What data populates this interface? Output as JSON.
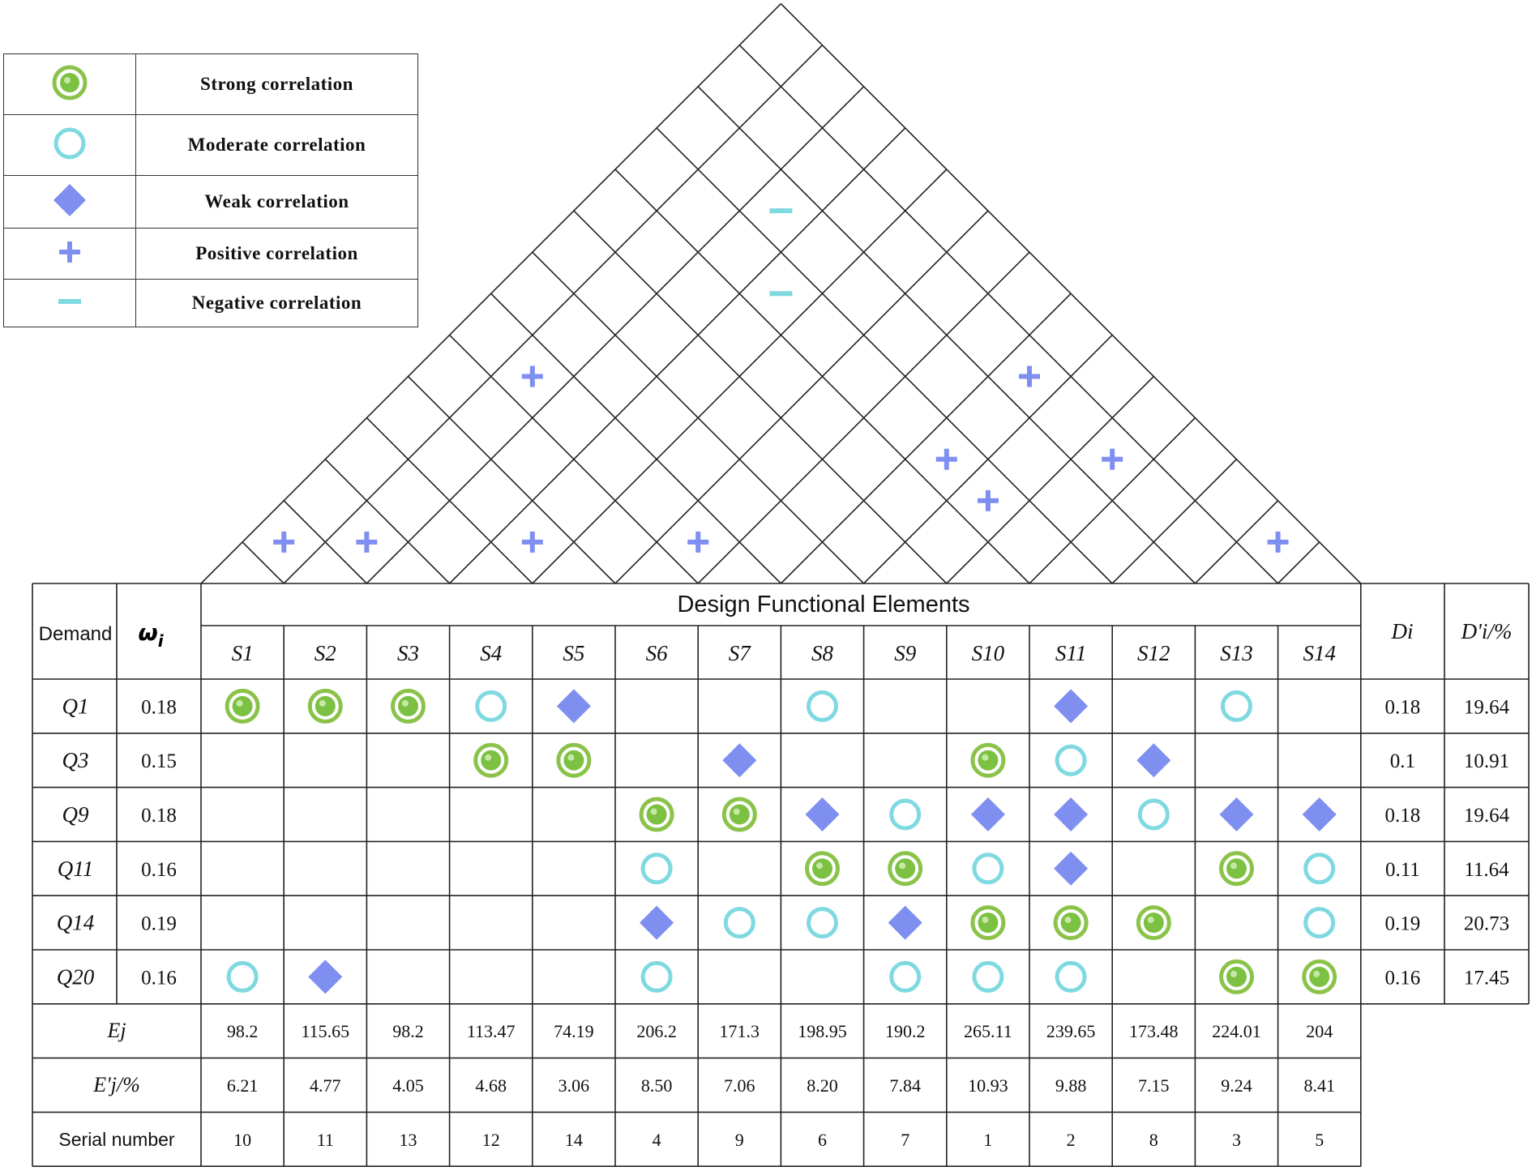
{
  "colors": {
    "strong": "#7cc142",
    "strong_ring": "#8bc34a",
    "moderate": "#7fd9e0",
    "weak": "#7f8ff0",
    "positive": "#7f8ff0",
    "negative": "#7fd9e0",
    "line": "#222222"
  },
  "legend": [
    {
      "symbol": "strong-icon",
      "label": "Strong correlation"
    },
    {
      "symbol": "moderate-icon",
      "label": "Moderate correlation"
    },
    {
      "symbol": "weak-icon",
      "label": "Weak correlation"
    },
    {
      "symbol": "plus-icon",
      "label": "Positive correlation"
    },
    {
      "symbol": "minus-icon",
      "label": "Negative correlation"
    }
  ],
  "roof": {
    "marks": [
      {
        "i": 1,
        "j": 2,
        "type": "plus"
      },
      {
        "i": 2,
        "j": 3,
        "type": "plus"
      },
      {
        "i": 4,
        "j": 5,
        "type": "plus"
      },
      {
        "i": 2,
        "j": 7,
        "type": "plus"
      },
      {
        "i": 4,
        "j": 11,
        "type": "minus"
      },
      {
        "i": 3,
        "j": 12,
        "type": "minus"
      },
      {
        "i": 6,
        "j": 7,
        "type": "plus"
      },
      {
        "i": 8,
        "j": 13,
        "type": "plus"
      },
      {
        "i": 8,
        "j": 11,
        "type": "plus"
      },
      {
        "i": 9,
        "j": 11,
        "type": "plus"
      },
      {
        "i": 10,
        "j": 13,
        "type": "plus"
      },
      {
        "i": 13,
        "j": 14,
        "type": "plus"
      }
    ]
  },
  "header": {
    "demand": "Demand",
    "omega": "ω",
    "omega_sub": "i",
    "group_title": "Design Functional Elements",
    "di": "Di",
    "dpi": "D'i/%"
  },
  "columns": [
    "S1",
    "S2",
    "S3",
    "S4",
    "S5",
    "S6",
    "S7",
    "S8",
    "S9",
    "S10",
    "S11",
    "S12",
    "S13",
    "S14"
  ],
  "rows": [
    {
      "demand": "Q1",
      "w": "0.18",
      "cells": [
        "S",
        "S",
        "S",
        "M",
        "W",
        "",
        "",
        "M",
        "",
        "",
        "W",
        "",
        "M",
        ""
      ],
      "di": "0.18",
      "dpi": "19.64"
    },
    {
      "demand": "Q3",
      "w": "0.15",
      "cells": [
        "",
        "",
        "",
        "S",
        "S",
        "",
        "W",
        "",
        "",
        "S",
        "M",
        "W",
        "",
        ""
      ],
      "di": "0.1",
      "dpi": "10.91"
    },
    {
      "demand": "Q9",
      "w": "0.18",
      "cells": [
        "",
        "",
        "",
        "",
        "",
        "S",
        "S",
        "W",
        "M",
        "W",
        "W",
        "M",
        "W",
        "W"
      ],
      "di": "0.18",
      "dpi": "19.64"
    },
    {
      "demand": "Q11",
      "w": "0.16",
      "cells": [
        "",
        "",
        "",
        "",
        "",
        "M",
        "",
        "S",
        "S",
        "M",
        "W",
        "",
        "S",
        "M"
      ],
      "di": "0.11",
      "dpi": "11.64"
    },
    {
      "demand": "Q14",
      "w": "0.19",
      "cells": [
        "",
        "",
        "",
        "",
        "",
        "W",
        "M",
        "M",
        "W",
        "S",
        "S",
        "S",
        "",
        "M"
      ],
      "di": "0.19",
      "dpi": "20.73"
    },
    {
      "demand": "Q20",
      "w": "0.16",
      "cells": [
        "M",
        "W",
        "",
        "",
        "",
        "M",
        "",
        "",
        "M",
        "M",
        "M",
        "",
        "S",
        "S"
      ],
      "di": "0.16",
      "dpi": "17.45"
    }
  ],
  "footer": [
    {
      "label": "Ej",
      "values": [
        "98.2",
        "115.65",
        "98.2",
        "113.47",
        "74.19",
        "206.2",
        "171.3",
        "198.95",
        "190.2",
        "265.11",
        "239.65",
        "173.48",
        "224.01",
        "204"
      ]
    },
    {
      "label": "E'j/%",
      "values": [
        "6.21",
        "4.77",
        "4.05",
        "4.68",
        "3.06",
        "8.50",
        "7.06",
        "8.20",
        "7.84",
        "10.93",
        "9.88",
        "7.15",
        "9.24",
        "8.41"
      ]
    },
    {
      "label": "Serial number",
      "values": [
        "10",
        "11",
        "13",
        "12",
        "14",
        "4",
        "9",
        "6",
        "7",
        "1",
        "2",
        "8",
        "3",
        "5"
      ]
    }
  ]
}
